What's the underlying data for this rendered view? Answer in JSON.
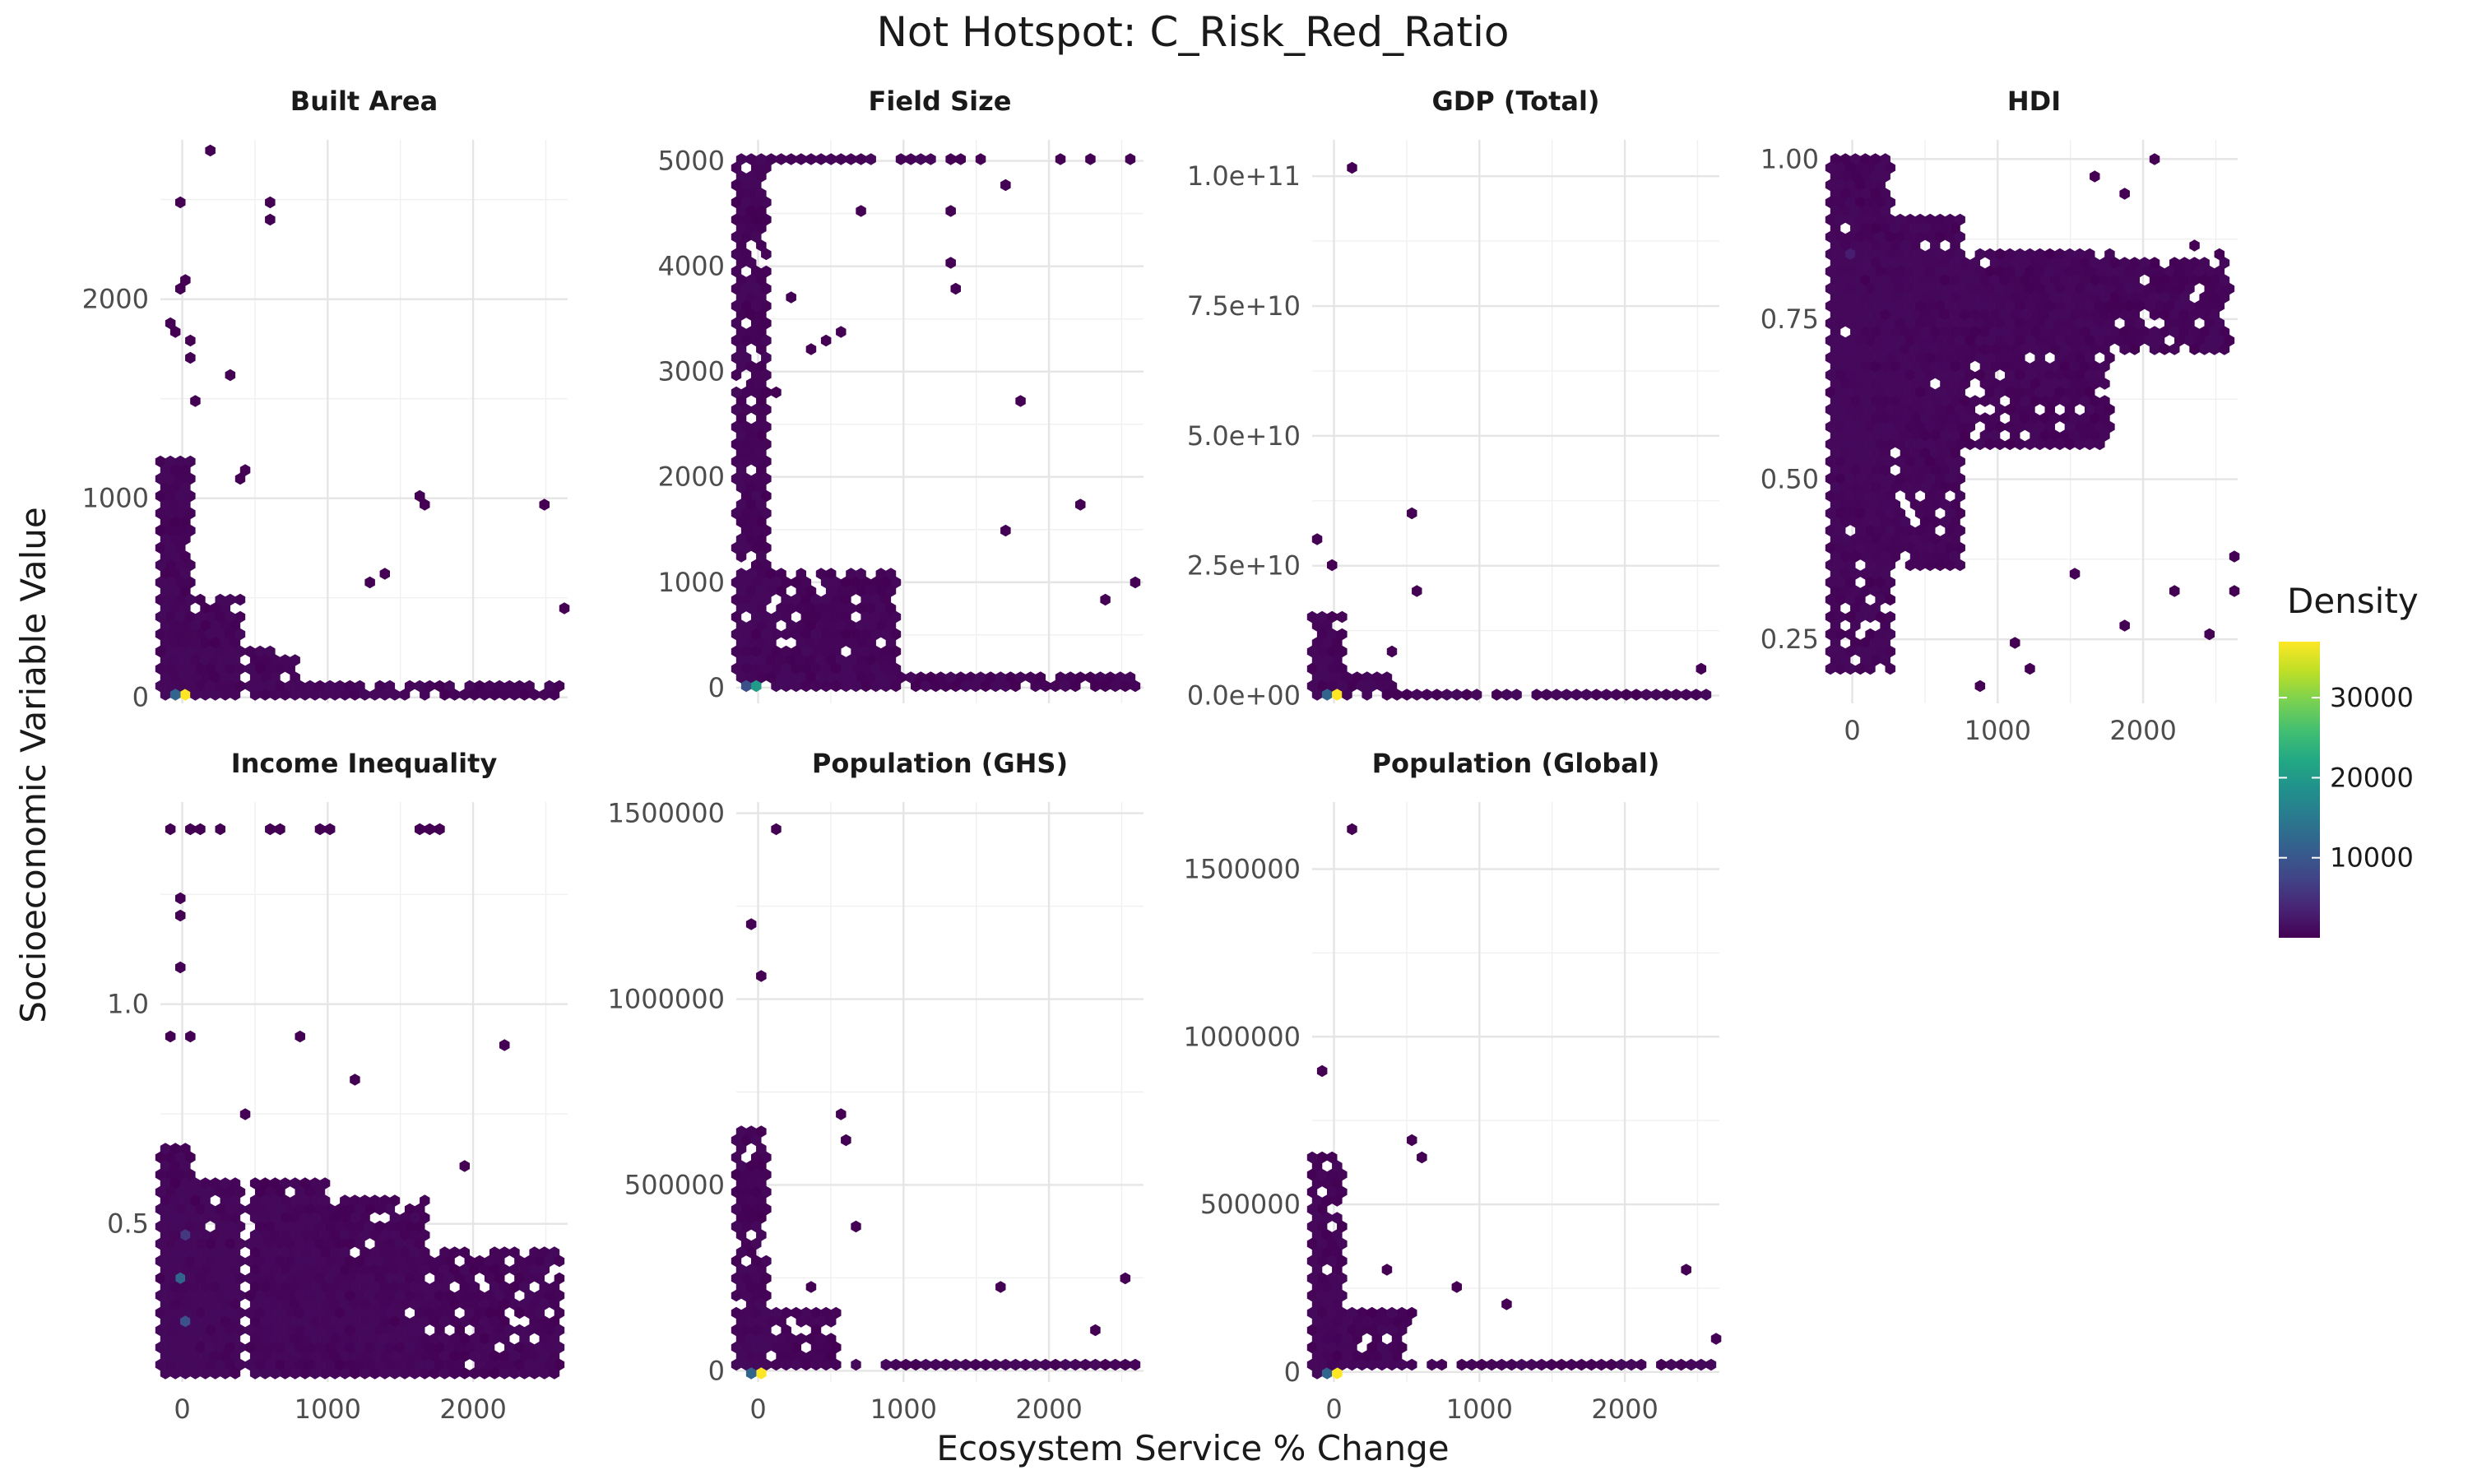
{
  "chart_data": {
    "type": "heatmap",
    "subtype": "hexbin-facet",
    "title": "Not Hotspot: C_Risk_Red_Ratio",
    "xlabel": "Ecosystem Service % Change",
    "ylabel": "Socioeconomic Variable Value",
    "xlim": [
      -150,
      2650
    ],
    "x_ticks": [
      0,
      1000,
      2000
    ],
    "x_tick_labels": [
      "0",
      "1000",
      "2000"
    ],
    "grid": true,
    "legend": {
      "title": "Density",
      "placement": "right",
      "colormap": "viridis",
      "range": [
        1,
        37000
      ],
      "ticks": [
        10000,
        20000,
        30000
      ],
      "tick_labels": [
        "10000",
        "20000",
        "30000"
      ]
    },
    "colors": {
      "low": "#440154",
      "mid": "#21908c",
      "high": "#fde725",
      "grid": "#ebebeb"
    },
    "panels": [
      {
        "name": "Built Area",
        "ylim": [
          -30,
          2800
        ],
        "y_ticks": [
          0,
          1000,
          2000
        ],
        "y_tick_labels": [
          "0",
          "1000",
          "2000"
        ],
        "dense_regions": [
          [
            -150,
            80,
            0,
            1200
          ],
          [
            -150,
            400,
            0,
            500
          ],
          [
            -150,
            800,
            0,
            250
          ],
          [
            -150,
            2650,
            0,
            60
          ]
        ],
        "outliers": [
          [
            160,
            2750
          ],
          [
            -30,
            2480
          ],
          [
            580,
            2480
          ],
          [
            620,
            2420
          ],
          [
            0,
            2100
          ],
          [
            20,
            2050
          ],
          [
            -110,
            1900
          ],
          [
            -80,
            1850
          ],
          [
            80,
            1800
          ],
          [
            60,
            1700
          ],
          [
            330,
            1600
          ],
          [
            100,
            1500
          ],
          [
            430,
            1140
          ],
          [
            400,
            1100
          ],
          [
            1620,
            990
          ],
          [
            1700,
            960
          ],
          [
            2500,
            960
          ],
          [
            1300,
            580
          ],
          [
            1400,
            600
          ],
          [
            2600,
            430
          ]
        ],
        "high_density_points": [
          [
            0,
            0,
            37000
          ],
          [
            -50,
            0,
            12000
          ],
          [
            50,
            0,
            8000
          ]
        ]
      },
      {
        "name": "Field Size",
        "ylim": [
          -150,
          5200
        ],
        "y_ticks": [
          0,
          1000,
          2000,
          3000,
          4000,
          5000
        ],
        "y_tick_labels": [
          "0",
          "1000",
          "2000",
          "3000",
          "4000",
          "5000"
        ],
        "dense_regions": [
          [
            -150,
            100,
            0,
            5000
          ],
          [
            -150,
            1000,
            0,
            1050
          ],
          [
            -150,
            2650,
            0,
            120
          ],
          [
            -150,
            1300,
            5000,
            5000
          ]
        ],
        "outliers": [
          [
            800,
            5000
          ],
          [
            1000,
            5000
          ],
          [
            1350,
            5000
          ],
          [
            1400,
            5000
          ],
          [
            1550,
            5000
          ],
          [
            2050,
            5000
          ],
          [
            2300,
            5000
          ],
          [
            2550,
            5000
          ],
          [
            1700,
            4750
          ],
          [
            1300,
            4500
          ],
          [
            1350,
            4050
          ],
          [
            1380,
            3750
          ],
          [
            700,
            4550
          ],
          [
            250,
            3700
          ],
          [
            600,
            3400
          ],
          [
            500,
            3300
          ],
          [
            350,
            3250
          ],
          [
            1800,
            2750
          ],
          [
            150,
            2800
          ],
          [
            2200,
            1700
          ],
          [
            1700,
            1450
          ],
          [
            2600,
            1000
          ],
          [
            2400,
            800
          ]
        ],
        "high_density_points": [
          [
            0,
            0,
            20000
          ],
          [
            -50,
            0,
            9000
          ]
        ]
      },
      {
        "name": "GDP (Total)",
        "ylim": [
          -1500000000.0,
          107000000000.0
        ],
        "y_ticks": [
          0,
          25000000000.0,
          50000000000.0,
          75000000000.0,
          100000000000.0
        ],
        "y_tick_labels": [
          "0.0e+00",
          "2.5e+10",
          "5.0e+10",
          "7.5e+10",
          "1.0e+11"
        ],
        "dense_regions": [
          [
            -150,
            100,
            0,
            15000000000.0
          ],
          [
            -150,
            400,
            0,
            4000000000.0
          ],
          [
            -150,
            2650,
            0,
            300000000.0
          ]
        ],
        "outliers": [
          [
            150,
            102000000000.0
          ],
          [
            -100,
            30000000000.0
          ],
          [
            0,
            25000000000.0
          ],
          [
            550,
            35000000000.0
          ],
          [
            600,
            20000000000.0
          ],
          [
            400,
            8000000000.0
          ],
          [
            2500,
            5500000000.0
          ]
        ],
        "high_density_points": [
          [
            0,
            0,
            37000
          ],
          [
            -50,
            0,
            12000
          ]
        ]
      },
      {
        "name": "HDI",
        "ylim": [
          0.15,
          1.03
        ],
        "y_ticks": [
          0.25,
          0.5,
          0.75,
          1.0
        ],
        "y_tick_labels": [
          "0.25",
          "0.50",
          "0.75",
          "1.00"
        ],
        "dense_regions": [
          [
            -150,
            300,
            0.2,
            1.0
          ],
          [
            -150,
            800,
            0.35,
            0.9
          ],
          [
            -150,
            1800,
            0.55,
            0.85
          ],
          [
            -150,
            2600,
            0.7,
            0.84
          ]
        ],
        "outliers": [
          [
            2050,
            1.0
          ],
          [
            1700,
            0.97
          ],
          [
            1850,
            0.95
          ],
          [
            2350,
            0.87
          ],
          [
            2550,
            0.85
          ],
          [
            1150,
            0.25
          ],
          [
            900,
            0.18
          ],
          [
            1250,
            0.2
          ],
          [
            1500,
            0.35
          ],
          [
            1900,
            0.27
          ],
          [
            2450,
            0.26
          ],
          [
            2600,
            0.32
          ],
          [
            2650,
            0.38
          ],
          [
            2200,
            0.33
          ]
        ],
        "high_density_points": [
          [
            0,
            0.85,
            3000
          ]
        ]
      },
      {
        "name": "Income Inequality",
        "ylim": [
          0.14,
          1.46
        ],
        "y_ticks": [
          0.5,
          1.0
        ],
        "y_tick_labels": [
          "0.5",
          "1.0"
        ],
        "dense_regions": [
          [
            -150,
            100,
            0.15,
            0.67
          ],
          [
            -150,
            1000,
            0.15,
            0.6
          ],
          [
            -150,
            1700,
            0.15,
            0.55
          ],
          [
            -150,
            2650,
            0.15,
            0.43
          ]
        ],
        "outliers": [
          [
            -50,
            1.4
          ],
          [
            50,
            1.4
          ],
          [
            150,
            1.4
          ],
          [
            250,
            1.4
          ],
          [
            600,
            1.4
          ],
          [
            700,
            1.4
          ],
          [
            950,
            1.4
          ],
          [
            1050,
            1.4
          ],
          [
            1600,
            1.4
          ],
          [
            1700,
            1.4
          ],
          [
            1800,
            1.4
          ],
          [
            0,
            1.25
          ],
          [
            0,
            1.2
          ],
          [
            0,
            1.08
          ],
          [
            -50,
            0.92
          ],
          [
            50,
            0.92
          ],
          [
            780,
            0.93
          ],
          [
            1200,
            0.83
          ],
          [
            2200,
            0.91
          ],
          [
            400,
            0.75
          ],
          [
            1950,
            0.64
          ]
        ],
        "high_density_points": [
          [
            0,
            0.37,
            12000
          ],
          [
            0,
            0.27,
            9000
          ],
          [
            0,
            0.47,
            6000
          ]
        ]
      },
      {
        "name": "Population (GHS)",
        "ylim": [
          -30000,
          1530000
        ],
        "y_ticks": [
          0,
          500000,
          1000000,
          1500000
        ],
        "y_tick_labels": [
          "0",
          "500000",
          "1000000",
          "1500000"
        ],
        "dense_regions": [
          [
            -150,
            100,
            0,
            650000
          ],
          [
            -150,
            600,
            0,
            150000
          ],
          [
            -150,
            2650,
            0,
            20000
          ]
        ],
        "outliers": [
          [
            150,
            1460000
          ],
          [
            -50,
            1210000
          ],
          [
            0,
            1060000
          ],
          [
            550,
            680000
          ],
          [
            600,
            630000
          ],
          [
            700,
            380000
          ],
          [
            1700,
            220000
          ],
          [
            2500,
            250000
          ],
          [
            350,
            220000
          ],
          [
            2300,
            100000
          ]
        ],
        "high_density_points": [
          [
            0,
            0,
            37000
          ],
          [
            -50,
            0,
            12000
          ]
        ]
      },
      {
        "name": "Population (Global)",
        "ylim": [
          -30000,
          1700000
        ],
        "y_ticks": [
          0,
          500000,
          1000000,
          1500000
        ],
        "y_tick_labels": [
          "0",
          "500000",
          "1000000",
          "1500000"
        ],
        "dense_regions": [
          [
            -150,
            100,
            0,
            650000
          ],
          [
            -150,
            600,
            0,
            180000
          ],
          [
            -150,
            2650,
            0,
            20000
          ]
        ],
        "outliers": [
          [
            150,
            1610000
          ],
          [
            -100,
            890000
          ],
          [
            550,
            700000
          ],
          [
            600,
            650000
          ],
          [
            2450,
            310000
          ],
          [
            1200,
            200000
          ],
          [
            850,
            250000
          ],
          [
            350,
            300000
          ],
          [
            2600,
            100000
          ]
        ],
        "high_density_points": [
          [
            0,
            0,
            37000
          ],
          [
            -50,
            0,
            12000
          ]
        ]
      }
    ]
  }
}
